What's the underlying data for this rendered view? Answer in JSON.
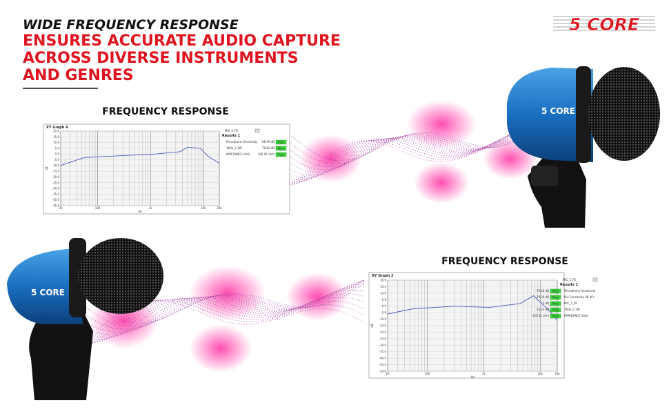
{
  "header": {
    "tagline": "WIDE FREQUENCY RESPONSE",
    "headline_lines": [
      "ENSURES ACCURATE AUDIO CAPTURE",
      "ACROSS DIVERSE INSTRUMENTS",
      "AND GENRES"
    ],
    "logo": "5 CORE"
  },
  "mic_logo": "5 CORE",
  "panels": [
    {
      "heading": "FREQUENCY RESPONSE",
      "graph_title": "XY Graph 4",
      "graph_name": "MIC_5_FR",
      "results_title": "Results 1",
      "x_label": "Hz",
      "y_label": "dB",
      "yticks": [
        {
          "value": 20,
          "label": "20.0"
        },
        {
          "value": 15,
          "label": "15.0"
        },
        {
          "value": 10,
          "label": "10.0"
        },
        {
          "value": 5,
          "label": "5.0"
        },
        {
          "value": 0,
          "label": "0.0"
        },
        {
          "value": -5,
          "label": "-5.0"
        },
        {
          "value": -10,
          "label": "-10.0"
        },
        {
          "value": -15,
          "label": "-15.0"
        },
        {
          "value": -20,
          "label": "-20.0"
        },
        {
          "value": -25,
          "label": "-25.0"
        },
        {
          "value": -30,
          "label": "-30.0"
        },
        {
          "value": -35,
          "label": "-35.0"
        },
        {
          "value": -40,
          "label": "-40.0"
        },
        {
          "value": -45,
          "label": "-45.0"
        }
      ],
      "xticks": [
        20,
        100,
        {
          "value": 1000,
          "label": "1k"
        },
        {
          "value": 10000,
          "label": "10k"
        },
        {
          "value": 20000,
          "label": "20k"
        }
      ],
      "results": [
        {
          "name": "Microphone Sensitivity",
          "value": "-68.99  dB",
          "status": "Pass"
        },
        {
          "name": "1KHz_0.1W",
          "value": "78.82  dB",
          "status": "Pass"
        },
        {
          "name": "IMPEDANCE VALU",
          "value": "382.91  ohm",
          "status": "Pass"
        }
      ]
    },
    {
      "heading": "FREQUENCY RESPONSE",
      "graph_title": "XY Graph 2",
      "graph_name": "MIC_5_FR",
      "results_title": "Results 1",
      "x_label": "Hz",
      "y_label": "dB",
      "yticks": [
        {
          "value": 20,
          "label": "20.0"
        },
        {
          "value": 15,
          "label": "15.0"
        },
        {
          "value": 10,
          "label": "10.0"
        },
        {
          "value": 5,
          "label": "5.0"
        },
        {
          "value": 0,
          "label": "0.0"
        },
        {
          "value": -5,
          "label": "-5.0"
        },
        {
          "value": -10,
          "label": "-10.0"
        },
        {
          "value": -15,
          "label": "-15.0"
        },
        {
          "value": -20,
          "label": "-20.0"
        },
        {
          "value": -25,
          "label": "-25.0"
        },
        {
          "value": -30,
          "label": "-30.0"
        },
        {
          "value": -35,
          "label": "-35.0"
        },
        {
          "value": -40,
          "label": "-40.0"
        },
        {
          "value": -45,
          "label": "-45.0"
        },
        {
          "value": -50,
          "label": "-50.0"
        }
      ],
      "xticks": [
        20,
        100,
        {
          "value": 1000,
          "label": "1k"
        },
        {
          "value": 10000,
          "label": "10k"
        },
        {
          "value": 20000,
          "label": "20k"
        }
      ],
      "results": [
        {
          "name": "Microphone Sensitivity",
          "value": "-79.26  dB",
          "status": "Pass"
        },
        {
          "name": "Mic Sensitivity dB dFs",
          "value": "-79.26  dB",
          "status": "Pass"
        },
        {
          "name": "MIC_5_FR",
          "value": "0  dB",
          "status": "Pass"
        },
        {
          "name": "1KHz_0.1W",
          "value": "33.23  dB",
          "status": "Pass"
        },
        {
          "name": "IMPEDANCE VALU",
          "value": "530.61  ohm",
          "status": "Pass"
        }
      ]
    }
  ]
}
